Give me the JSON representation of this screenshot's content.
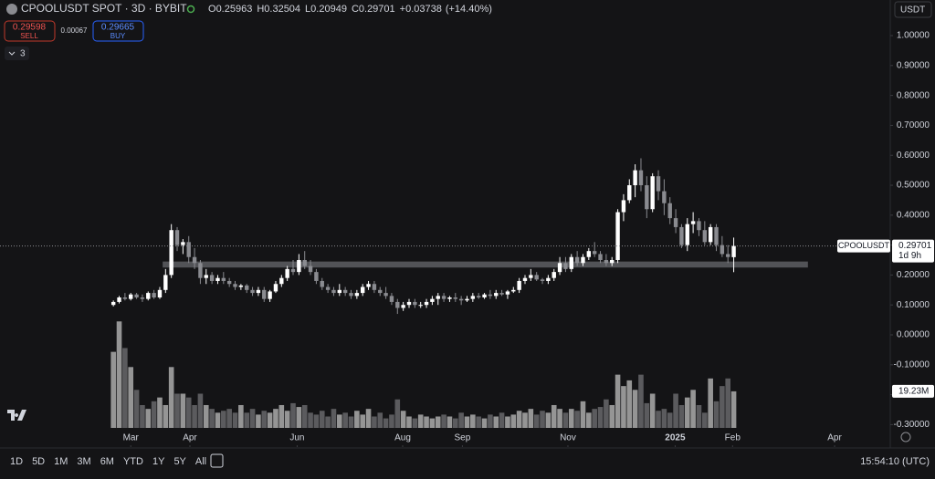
{
  "chart_data": {
    "type": "candlestick",
    "title": "CPOOLUSDT SPOT · 3D · BYBIT",
    "ohlc_prefixes": [
      "O",
      "H",
      "L",
      "C"
    ],
    "change": {
      "value": 0.03738,
      "label": "+0.03738"
    },
    "change_pct": {
      "value": 14.4,
      "label": "(+14.40%)"
    },
    "sell": {
      "price": 0.29598,
      "label": "SELL"
    },
    "spread": 0.00067,
    "buy": {
      "price": 0.29665,
      "label": "BUY"
    },
    "indicator_count": 3,
    "currency": "USDT",
    "symbol_tag": "CPOOLUSDT",
    "countdown": "1d 9h",
    "volume_label": "19.23M",
    "up_color": "#ffffff",
    "down_color": "#8a8b90",
    "ylim": [
      -0.375,
      1.119
    ],
    "xlim": [
      -0.5,
      134
    ],
    "volume_ylim": [
      0,
      225
    ],
    "yticks": [
      {
        "value": 1,
        "label": "1.00000"
      },
      {
        "value": 0.9,
        "label": "0.90000"
      },
      {
        "value": 0.8,
        "label": "0.80000"
      },
      {
        "value": 0.7,
        "label": "0.70000"
      },
      {
        "value": 0.6,
        "label": "0.60000"
      },
      {
        "value": 0.5,
        "label": "0.50000"
      },
      {
        "value": 0.4,
        "label": "0.40000"
      },
      {
        "value": 0.3,
        "label": "0.30000"
      },
      {
        "value": 0.2,
        "label": "0.20000"
      },
      {
        "value": 0.1,
        "label": "0.10000"
      },
      {
        "value": 0,
        "label": "0.00000"
      },
      {
        "value": -0.1,
        "label": "-0.10000"
      },
      {
        "value": -0.2,
        "label": "-0.20000"
      },
      {
        "value": -0.3,
        "label": "-0.30000"
      }
    ],
    "xticks": [
      {
        "value": 3,
        "label": "Mar"
      },
      {
        "value": 13.2,
        "label": "Apr"
      },
      {
        "value": 31.7,
        "label": "Jun"
      },
      {
        "value": 49.9,
        "label": "Aug"
      },
      {
        "value": 60.2,
        "label": "Sep"
      },
      {
        "value": 78.4,
        "label": "Nov"
      },
      {
        "value": 96.9,
        "label": "2025"
      },
      {
        "value": 106.8,
        "label": "Feb"
      },
      {
        "value": 124.4,
        "label": "Apr"
      }
    ],
    "support_zone": {
      "x": [
        8.5,
        119.8
      ],
      "y": [
        0.225,
        0.245
      ]
    },
    "ohlc": [
      [
        0.1,
        0.115,
        0.095,
        0.11
      ],
      [
        0.11,
        0.13,
        0.105,
        0.125
      ],
      [
        0.125,
        0.14,
        0.115,
        0.12
      ],
      [
        0.12,
        0.14,
        0.115,
        0.135
      ],
      [
        0.135,
        0.14,
        0.12,
        0.125
      ],
      [
        0.125,
        0.135,
        0.11,
        0.12
      ],
      [
        0.12,
        0.145,
        0.115,
        0.14
      ],
      [
        0.14,
        0.15,
        0.12,
        0.125
      ],
      [
        0.125,
        0.16,
        0.12,
        0.15
      ],
      [
        0.15,
        0.22,
        0.14,
        0.2
      ],
      [
        0.2,
        0.37,
        0.19,
        0.35
      ],
      [
        0.35,
        0.36,
        0.28,
        0.3
      ],
      [
        0.3,
        0.32,
        0.27,
        0.31
      ],
      [
        0.31,
        0.33,
        0.24,
        0.26
      ],
      [
        0.26,
        0.29,
        0.22,
        0.24
      ],
      [
        0.24,
        0.25,
        0.17,
        0.19
      ],
      [
        0.19,
        0.22,
        0.17,
        0.2
      ],
      [
        0.2,
        0.21,
        0.17,
        0.18
      ],
      [
        0.18,
        0.2,
        0.17,
        0.19
      ],
      [
        0.19,
        0.21,
        0.17,
        0.18
      ],
      [
        0.18,
        0.19,
        0.16,
        0.17
      ],
      [
        0.17,
        0.18,
        0.15,
        0.16
      ],
      [
        0.16,
        0.17,
        0.15,
        0.165
      ],
      [
        0.165,
        0.17,
        0.14,
        0.15
      ],
      [
        0.15,
        0.16,
        0.13,
        0.14
      ],
      [
        0.14,
        0.16,
        0.13,
        0.15
      ],
      [
        0.15,
        0.16,
        0.11,
        0.12
      ],
      [
        0.12,
        0.15,
        0.11,
        0.145
      ],
      [
        0.145,
        0.18,
        0.14,
        0.17
      ],
      [
        0.17,
        0.2,
        0.16,
        0.19
      ],
      [
        0.19,
        0.23,
        0.18,
        0.22
      ],
      [
        0.22,
        0.25,
        0.2,
        0.21
      ],
      [
        0.21,
        0.27,
        0.2,
        0.25
      ],
      [
        0.25,
        0.28,
        0.22,
        0.23
      ],
      [
        0.23,
        0.25,
        0.2,
        0.21
      ],
      [
        0.21,
        0.22,
        0.17,
        0.18
      ],
      [
        0.18,
        0.19,
        0.15,
        0.16
      ],
      [
        0.16,
        0.17,
        0.14,
        0.15
      ],
      [
        0.15,
        0.16,
        0.13,
        0.14
      ],
      [
        0.14,
        0.17,
        0.13,
        0.15
      ],
      [
        0.15,
        0.16,
        0.13,
        0.14
      ],
      [
        0.14,
        0.15,
        0.12,
        0.13
      ],
      [
        0.13,
        0.15,
        0.12,
        0.14
      ],
      [
        0.14,
        0.17,
        0.13,
        0.16
      ],
      [
        0.16,
        0.18,
        0.15,
        0.17
      ],
      [
        0.17,
        0.18,
        0.14,
        0.15
      ],
      [
        0.15,
        0.16,
        0.13,
        0.14
      ],
      [
        0.14,
        0.16,
        0.12,
        0.13
      ],
      [
        0.13,
        0.14,
        0.1,
        0.11
      ],
      [
        0.11,
        0.12,
        0.07,
        0.09
      ],
      [
        0.09,
        0.11,
        0.08,
        0.1
      ],
      [
        0.1,
        0.12,
        0.09,
        0.11
      ],
      [
        0.11,
        0.12,
        0.09,
        0.1
      ],
      [
        0.1,
        0.11,
        0.09,
        0.1
      ],
      [
        0.1,
        0.12,
        0.09,
        0.11
      ],
      [
        0.11,
        0.13,
        0.1,
        0.12
      ],
      [
        0.12,
        0.14,
        0.1,
        0.13
      ],
      [
        0.13,
        0.14,
        0.11,
        0.12
      ],
      [
        0.12,
        0.13,
        0.11,
        0.125
      ],
      [
        0.125,
        0.14,
        0.11,
        0.12
      ],
      [
        0.12,
        0.13,
        0.1,
        0.115
      ],
      [
        0.115,
        0.13,
        0.11,
        0.12
      ],
      [
        0.12,
        0.14,
        0.11,
        0.13
      ],
      [
        0.13,
        0.14,
        0.12,
        0.125
      ],
      [
        0.125,
        0.14,
        0.12,
        0.135
      ],
      [
        0.135,
        0.15,
        0.12,
        0.13
      ],
      [
        0.13,
        0.15,
        0.12,
        0.14
      ],
      [
        0.14,
        0.15,
        0.13,
        0.135
      ],
      [
        0.135,
        0.15,
        0.12,
        0.145
      ],
      [
        0.145,
        0.16,
        0.14,
        0.15
      ],
      [
        0.15,
        0.19,
        0.14,
        0.18
      ],
      [
        0.18,
        0.2,
        0.17,
        0.19
      ],
      [
        0.19,
        0.22,
        0.18,
        0.2
      ],
      [
        0.2,
        0.21,
        0.18,
        0.185
      ],
      [
        0.185,
        0.19,
        0.17,
        0.18
      ],
      [
        0.18,
        0.2,
        0.17,
        0.19
      ],
      [
        0.19,
        0.22,
        0.18,
        0.21
      ],
      [
        0.21,
        0.26,
        0.2,
        0.24
      ],
      [
        0.24,
        0.26,
        0.21,
        0.22
      ],
      [
        0.22,
        0.27,
        0.21,
        0.26
      ],
      [
        0.26,
        0.28,
        0.23,
        0.24
      ],
      [
        0.24,
        0.27,
        0.23,
        0.26
      ],
      [
        0.26,
        0.29,
        0.25,
        0.28
      ],
      [
        0.28,
        0.31,
        0.26,
        0.27
      ],
      [
        0.27,
        0.28,
        0.24,
        0.25
      ],
      [
        0.25,
        0.27,
        0.23,
        0.24
      ],
      [
        0.24,
        0.26,
        0.23,
        0.25
      ],
      [
        0.25,
        0.42,
        0.24,
        0.41
      ],
      [
        0.41,
        0.47,
        0.38,
        0.45
      ],
      [
        0.45,
        0.52,
        0.44,
        0.5
      ],
      [
        0.5,
        0.57,
        0.46,
        0.55
      ],
      [
        0.55,
        0.59,
        0.48,
        0.5
      ],
      [
        0.5,
        0.53,
        0.39,
        0.42
      ],
      [
        0.42,
        0.54,
        0.41,
        0.53
      ],
      [
        0.53,
        0.55,
        0.45,
        0.48
      ],
      [
        0.48,
        0.52,
        0.4,
        0.44
      ],
      [
        0.44,
        0.46,
        0.37,
        0.39
      ],
      [
        0.39,
        0.42,
        0.34,
        0.36
      ],
      [
        0.36,
        0.37,
        0.29,
        0.3
      ],
      [
        0.3,
        0.39,
        0.28,
        0.37
      ],
      [
        0.37,
        0.41,
        0.34,
        0.38
      ],
      [
        0.38,
        0.39,
        0.33,
        0.35
      ],
      [
        0.35,
        0.38,
        0.3,
        0.31
      ],
      [
        0.31,
        0.37,
        0.3,
        0.36
      ],
      [
        0.36,
        0.37,
        0.28,
        0.3
      ],
      [
        0.3,
        0.33,
        0.26,
        0.27
      ],
      [
        0.27,
        0.3,
        0.24,
        0.26
      ],
      [
        0.25963,
        0.32504,
        0.20949,
        0.29701
      ]
    ],
    "volume": [
      40,
      56,
      42,
      32,
      20,
      12,
      10,
      14,
      16,
      12,
      32,
      18,
      18,
      16,
      12,
      18,
      12,
      10,
      8,
      9,
      10,
      8,
      12,
      8,
      10,
      7,
      9,
      8,
      10,
      12,
      9,
      13,
      11,
      12,
      8,
      7,
      9,
      6,
      10,
      7,
      8,
      6,
      9,
      7,
      10,
      6,
      8,
      5,
      7,
      15,
      9,
      6,
      5,
      7,
      6,
      5,
      6,
      7,
      6,
      5,
      8,
      6,
      7,
      6,
      5,
      7,
      6,
      8,
      6,
      7,
      9,
      8,
      10,
      7,
      9,
      8,
      12,
      10,
      8,
      10,
      9,
      14,
      8,
      10,
      11,
      15,
      12,
      28,
      22,
      25,
      20,
      28,
      13,
      18,
      9,
      10,
      8,
      18,
      12,
      16,
      20,
      12,
      8,
      26,
      14,
      22,
      26,
      19.23
    ]
  },
  "toolbar": {
    "ranges": [
      "1D",
      "5D",
      "1M",
      "3M",
      "6M",
      "YTD",
      "1Y",
      "5Y",
      "All"
    ],
    "time": "15:54:10 (UTC)"
  }
}
